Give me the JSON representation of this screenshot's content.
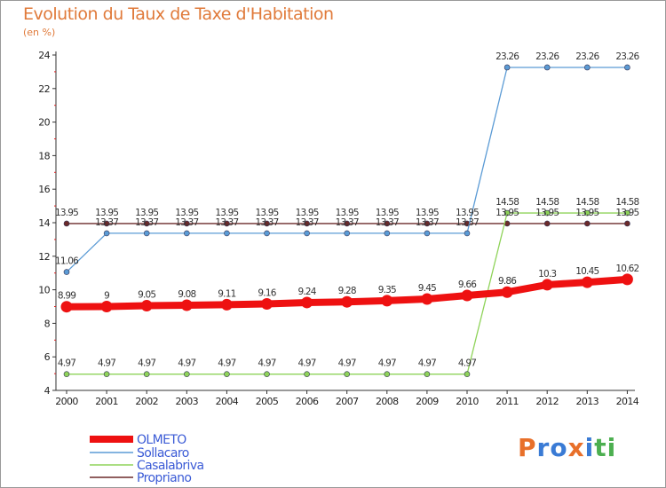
{
  "title": "Evolution du Taux de Taxe d'Habitation",
  "unit": "(en %)",
  "logo": {
    "letters": [
      "P",
      "r",
      "o",
      "x",
      "i",
      "t",
      "i"
    ],
    "colors": [
      "#e8702a",
      "#3a7bd5",
      "#3a7bd5",
      "#e8702a",
      "#3a7bd5",
      "#4caf50",
      "#4caf50"
    ]
  },
  "chart_data": {
    "type": "line",
    "x": [
      "2000",
      "2001",
      "2002",
      "2003",
      "2004",
      "2005",
      "2006",
      "2007",
      "2008",
      "2009",
      "2010",
      "2011",
      "2012",
      "2013",
      "2014"
    ],
    "ylim": [
      4,
      24
    ],
    "yticks": [
      "4",
      "6",
      "8",
      "10",
      "12",
      "14",
      "16",
      "18",
      "20",
      "22",
      "24"
    ],
    "grid": false,
    "legend_position": "bottom-left",
    "series": [
      {
        "name": "OLMETO",
        "color": "#ee1111",
        "values": [
          8.99,
          9,
          9.05,
          9.08,
          9.11,
          9.16,
          9.24,
          9.28,
          9.35,
          9.45,
          9.66,
          9.86,
          10.3,
          10.45,
          10.62
        ],
        "labels": [
          "8.99",
          "9",
          "9.05",
          "9.08",
          "9.11",
          "9.16",
          "9.24",
          "9.28",
          "9.35",
          "9.45",
          "9.66",
          "9.86",
          "10.3",
          "10.45",
          "10.62"
        ]
      },
      {
        "name": "Sollacaro",
        "color": "#5b9bd5",
        "values": [
          11.06,
          13.37,
          13.37,
          13.37,
          13.37,
          13.37,
          13.37,
          13.37,
          13.37,
          13.37,
          13.37,
          23.26,
          23.26,
          23.26,
          23.26
        ],
        "labels": [
          "11.06",
          "13.37",
          "13.37",
          "13.37",
          "13.37",
          "13.37",
          "13.37",
          "13.37",
          "13.37",
          "13.37",
          "13.37",
          "23.26",
          "23.26",
          "23.26",
          "23.26"
        ]
      },
      {
        "name": "Casalabriva",
        "color": "#8fd35a",
        "values": [
          4.97,
          4.97,
          4.97,
          4.97,
          4.97,
          4.97,
          4.97,
          4.97,
          4.97,
          4.97,
          4.97,
          14.58,
          14.58,
          14.58,
          14.58
        ],
        "labels": [
          "4.97",
          "4.97",
          "4.97",
          "4.97",
          "4.97",
          "4.97",
          "4.97",
          "4.97",
          "4.97",
          "4.97",
          "4.97",
          "14.58",
          "14.58",
          "14.58",
          "14.58"
        ]
      },
      {
        "name": "Propriano",
        "color": "#6b2a2a",
        "values": [
          13.95,
          13.95,
          13.95,
          13.95,
          13.95,
          13.95,
          13.95,
          13.95,
          13.95,
          13.95,
          13.95,
          13.95,
          13.95,
          13.95,
          13.95
        ],
        "labels": [
          "13.95",
          "13.95",
          "13.95",
          "13.95",
          "13.95",
          "13.95",
          "13.95",
          "13.95",
          "13.95",
          "13.95",
          "13.95",
          "13.95",
          "13.95",
          "13.95",
          "13.95"
        ]
      }
    ]
  }
}
